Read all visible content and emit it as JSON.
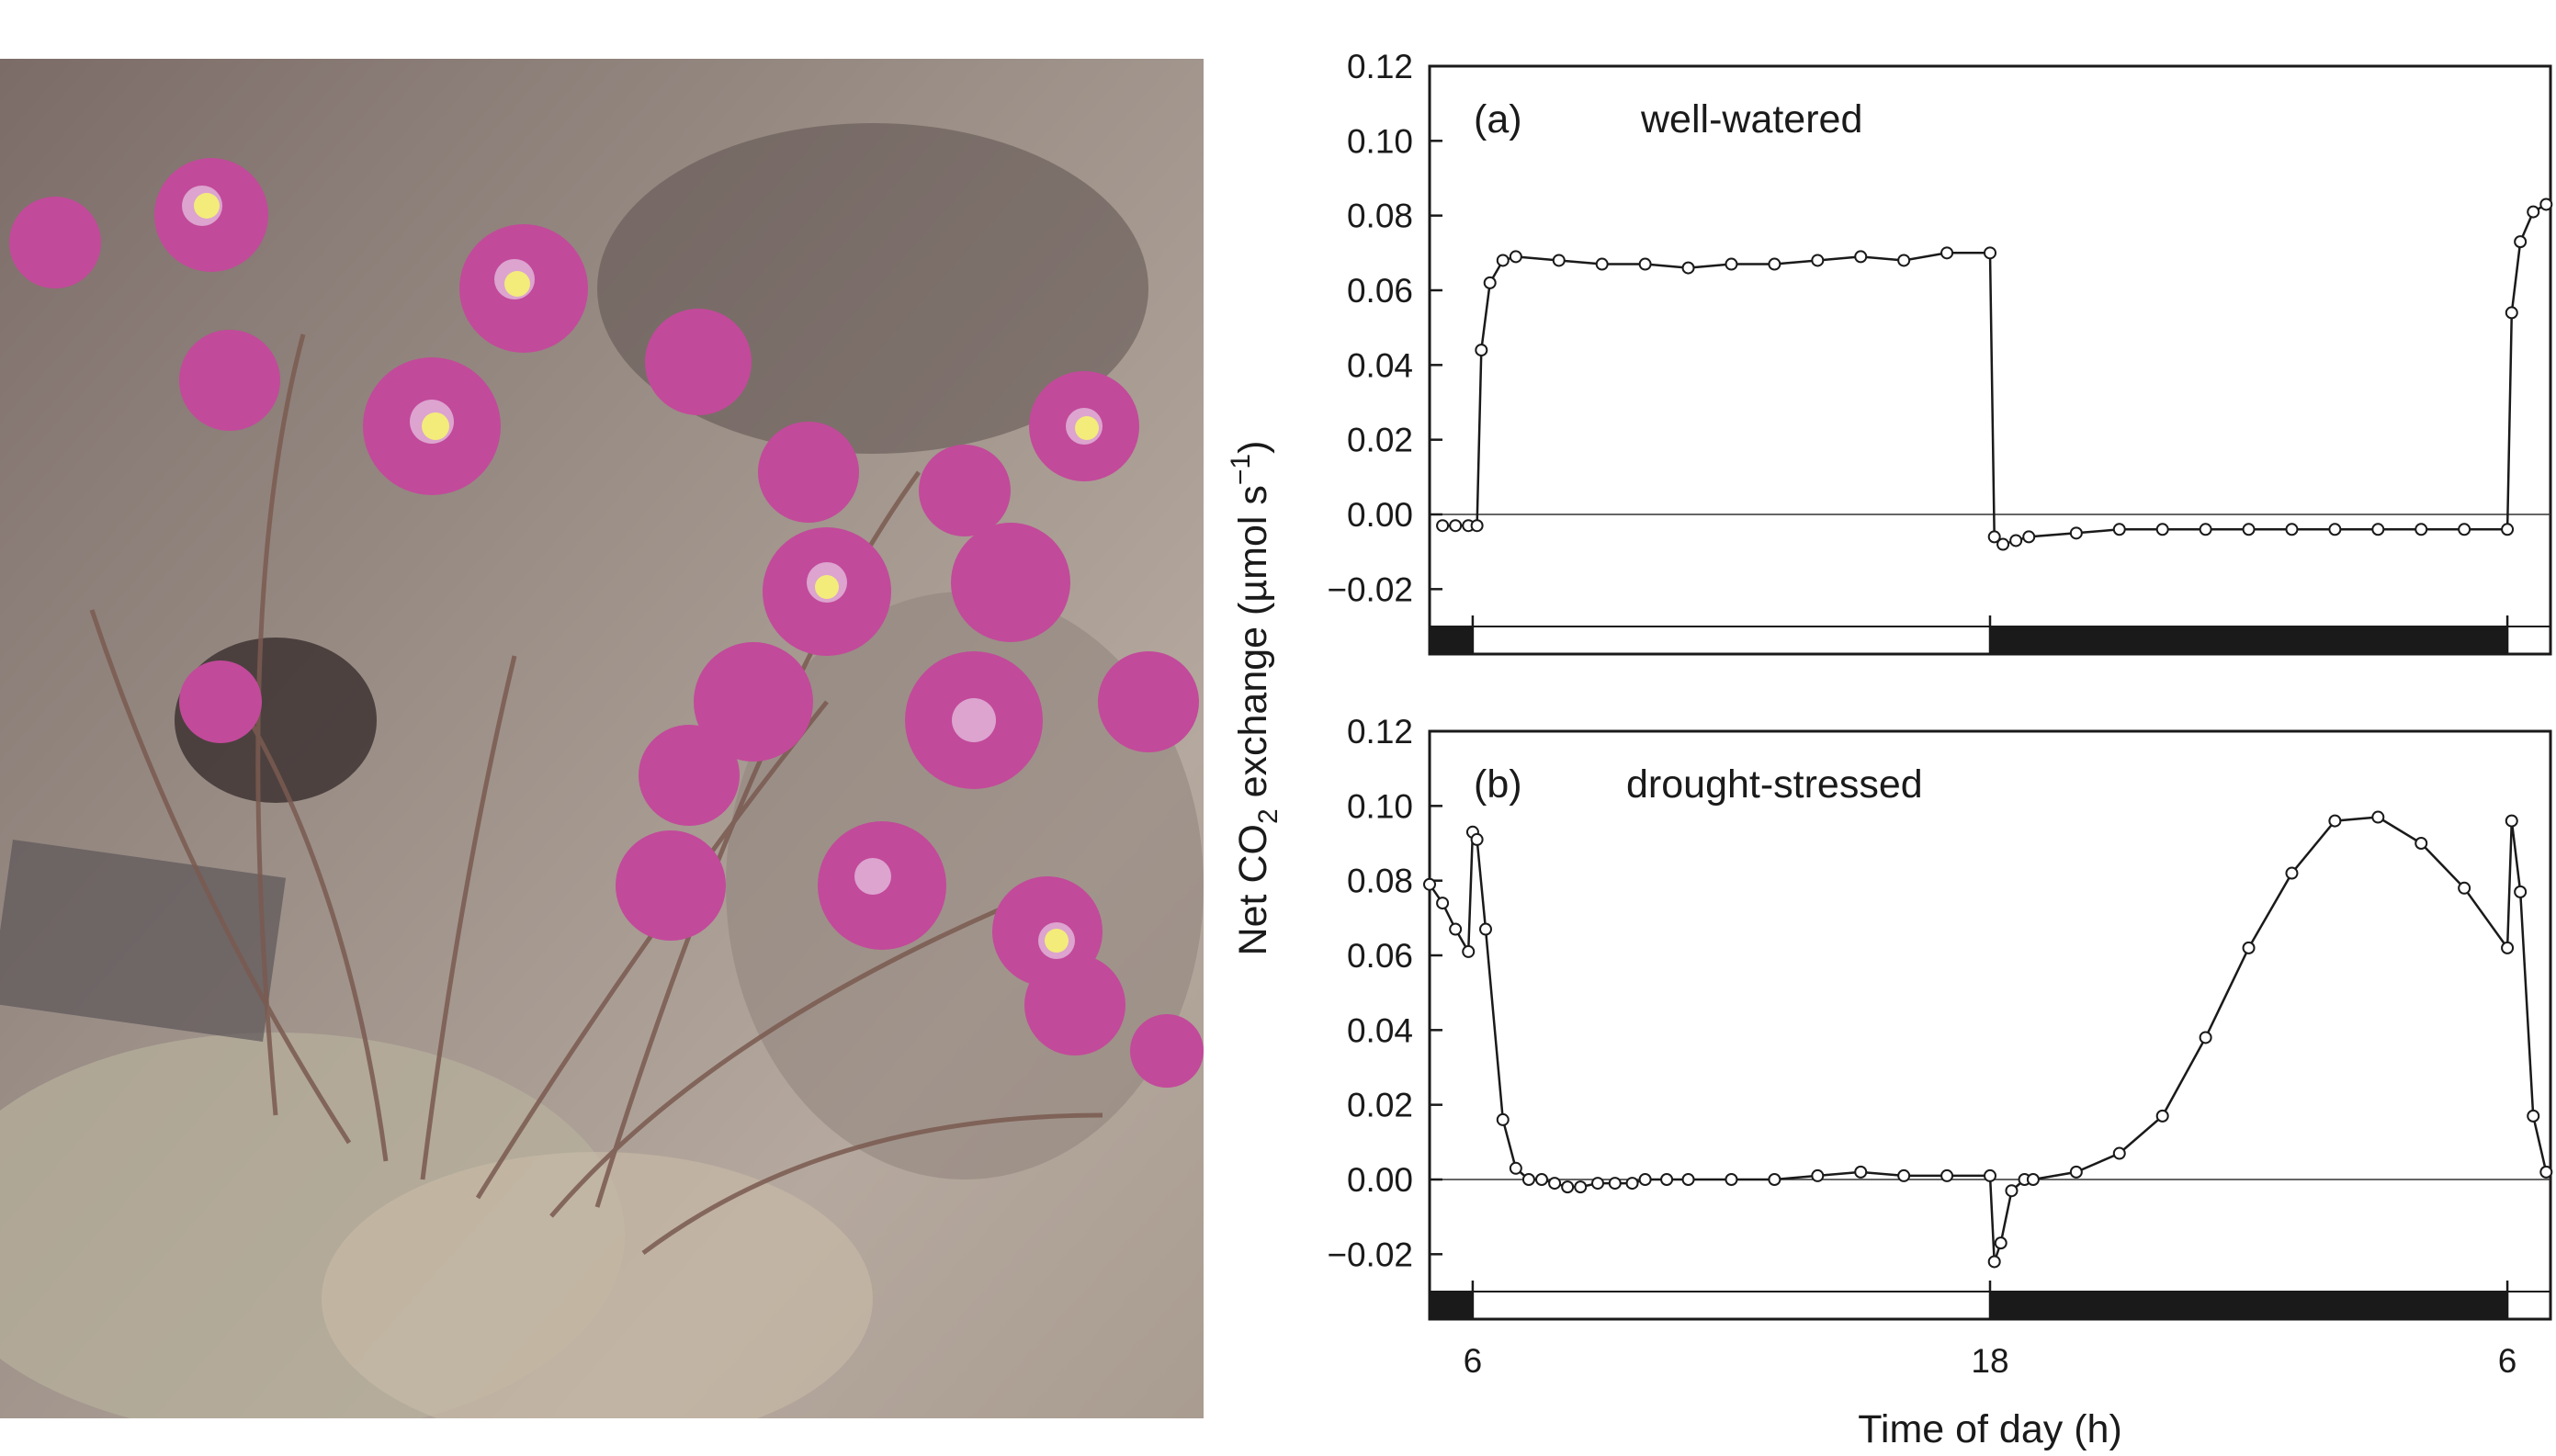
{
  "photo": {
    "icon": "flowering-plant-photo"
  },
  "chart_data": [
    {
      "type": "line",
      "panel_label": "(a)",
      "condition": "well-watered",
      "ylim": [
        -0.03,
        0.12
      ],
      "yticks": [
        "0.12",
        "0.10",
        "0.08",
        "0.06",
        "0.04",
        "0.02",
        "0.00",
        "−0.02"
      ],
      "xlim": [
        5,
        31
      ],
      "grid": false,
      "dark_periods": [
        [
          5,
          6
        ],
        [
          18,
          30
        ]
      ],
      "x": [
        5.3,
        5.6,
        5.9,
        6.1,
        6.2,
        6.4,
        6.7,
        7.0,
        8.0,
        9.0,
        10.0,
        11.0,
        12.0,
        13.0,
        14.0,
        15.0,
        16.0,
        17.0,
        18.0,
        18.1,
        18.3,
        18.6,
        18.9,
        20.0,
        21.0,
        22.0,
        23.0,
        24.0,
        25.0,
        26.0,
        27.0,
        28.0,
        29.0,
        30.0,
        30.1,
        30.3,
        30.6,
        30.9
      ],
      "values": [
        -0.003,
        -0.003,
        -0.003,
        -0.003,
        0.044,
        0.062,
        0.068,
        0.069,
        0.068,
        0.067,
        0.067,
        0.066,
        0.067,
        0.067,
        0.068,
        0.069,
        0.068,
        0.07,
        0.07,
        -0.006,
        -0.008,
        -0.007,
        -0.006,
        -0.005,
        -0.004,
        -0.004,
        -0.004,
        -0.004,
        -0.004,
        -0.004,
        -0.004,
        -0.004,
        -0.004,
        -0.004,
        0.054,
        0.073,
        0.081,
        0.083
      ]
    },
    {
      "type": "line",
      "panel_label": "(b)",
      "condition": "drought-stressed",
      "ylim": [
        -0.03,
        0.12
      ],
      "yticks": [
        "0.12",
        "0.10",
        "0.08",
        "0.06",
        "0.04",
        "0.02",
        "0.00",
        "−0.02"
      ],
      "xlim": [
        5,
        31
      ],
      "xticks": [
        "6",
        "18",
        "6"
      ],
      "xtick_values": [
        6,
        18,
        30
      ],
      "xlabel": "Time of day (h)",
      "grid": false,
      "dark_periods": [
        [
          5,
          6
        ],
        [
          18,
          30
        ]
      ],
      "x": [
        5.0,
        5.3,
        5.6,
        5.9,
        6.0,
        6.1,
        6.3,
        6.7,
        7.0,
        7.3,
        7.6,
        7.9,
        8.2,
        8.5,
        8.9,
        9.3,
        9.7,
        10.0,
        10.5,
        11.0,
        12.0,
        13.0,
        14.0,
        15.0,
        16.0,
        17.0,
        18.0,
        18.1,
        18.25,
        18.5,
        18.8,
        19.0,
        20.0,
        21.0,
        22.0,
        23.0,
        24.0,
        25.0,
        26.0,
        27.0,
        28.0,
        29.0,
        30.0,
        30.1,
        30.3,
        30.6,
        30.9
      ],
      "values": [
        0.079,
        0.074,
        0.067,
        0.061,
        0.093,
        0.091,
        0.067,
        0.016,
        0.003,
        0.0,
        0.0,
        -0.001,
        -0.002,
        -0.002,
        -0.001,
        -0.001,
        -0.001,
        0.0,
        0.0,
        0.0,
        0.0,
        0.0,
        0.001,
        0.002,
        0.001,
        0.001,
        0.001,
        -0.022,
        -0.017,
        -0.003,
        0.0,
        0.0,
        0.002,
        0.007,
        0.017,
        0.038,
        0.062,
        0.082,
        0.096,
        0.097,
        0.09,
        0.078,
        0.062,
        0.096,
        0.077,
        0.017,
        0.002
      ]
    }
  ],
  "ylabel": {
    "prefix": "Net CO",
    "subscript": "2",
    "middle": " exchange (µmol s",
    "superscript": "−1",
    "suffix": ")"
  }
}
